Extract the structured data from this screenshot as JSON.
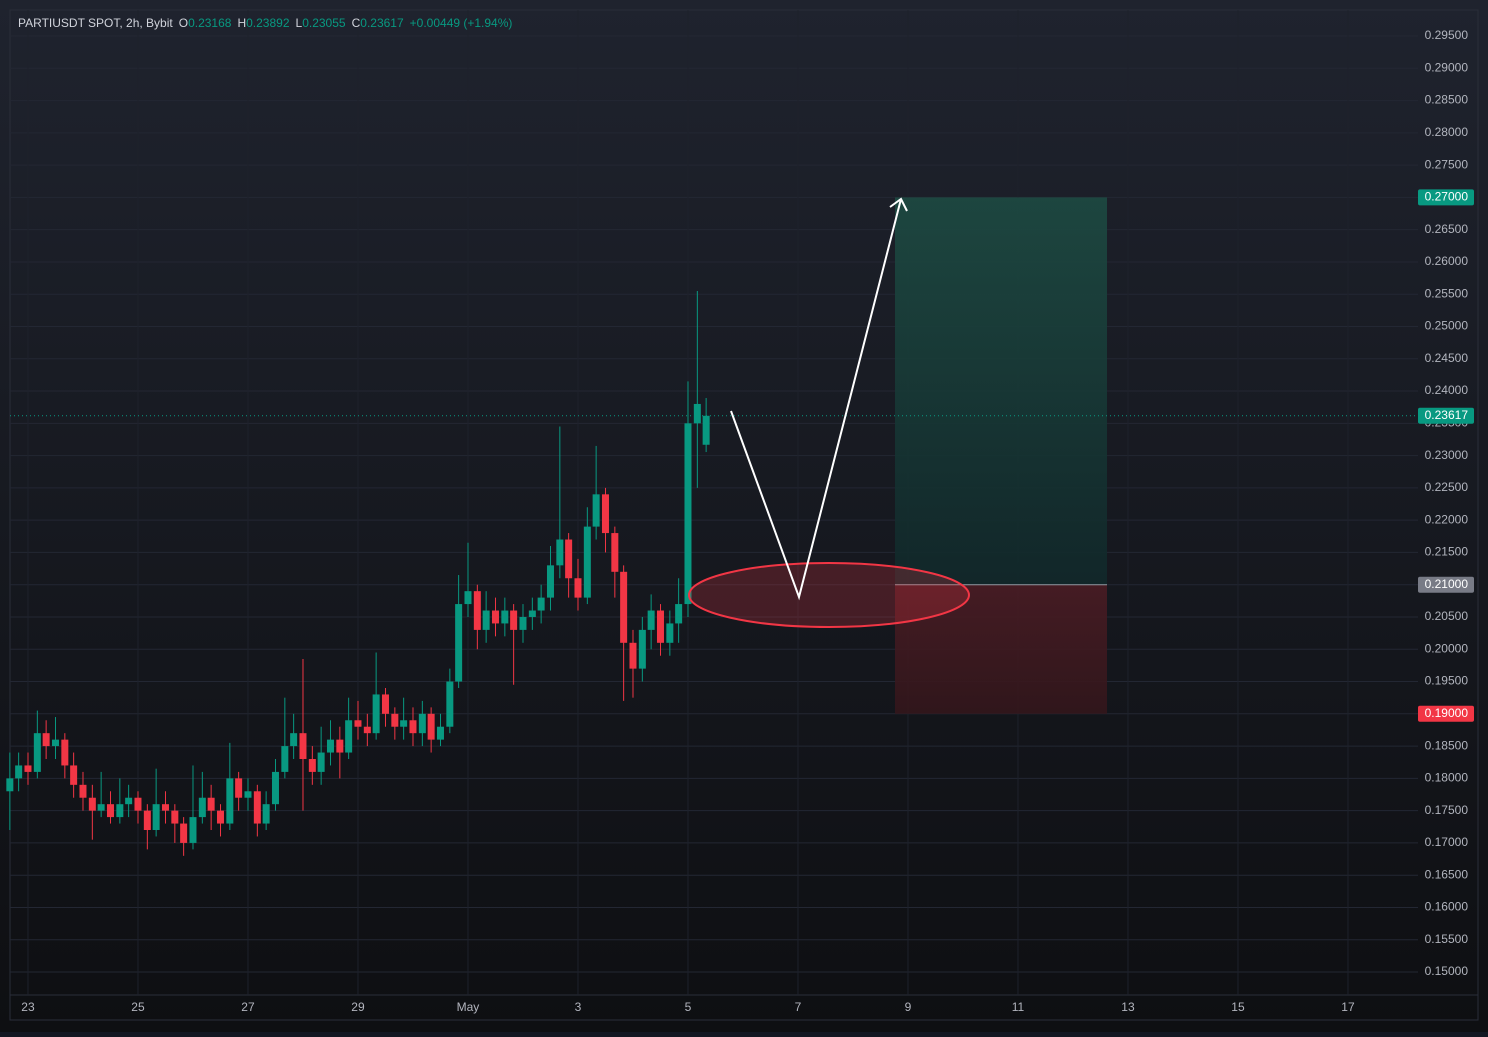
{
  "header": {
    "symbol": "PARTIUSDT SPOT, 2h, Bybit",
    "fields": [
      "O",
      "H",
      "L",
      "C"
    ],
    "change": "+0.00449 (+1.94%)"
  },
  "chart_data": {
    "type": "candlestick",
    "x": [
      -0.33,
      -0.17,
      0,
      0.17,
      0.33,
      0.5,
      0.67,
      0.83,
      1,
      1.17,
      1.33,
      1.5,
      1.67,
      1.83,
      2,
      2.17,
      2.33,
      2.5,
      2.67,
      2.83,
      3,
      3.17,
      3.33,
      3.5,
      3.67,
      3.83,
      4,
      4.17,
      4.33,
      4.5,
      4.67,
      4.83,
      5,
      5.17,
      5.33,
      5.5,
      5.67,
      5.83,
      6,
      6.17,
      6.33,
      6.5,
      6.67,
      6.83,
      7,
      7.17,
      7.33,
      7.5,
      7.67,
      7.83,
      8,
      8.17,
      8.33,
      8.5,
      8.67,
      8.83,
      9,
      9.17,
      9.33,
      9.5,
      9.67,
      9.83,
      10,
      10.17,
      10.33,
      10.5,
      10.67,
      10.83,
      11,
      11.17,
      11.33,
      11.5,
      11.67,
      11.83,
      12,
      12.17,
      12.33
    ],
    "open": [
      0.178,
      0.18,
      0.182,
      0.181,
      0.187,
      0.185,
      0.186,
      0.182,
      0.179,
      0.177,
      0.175,
      0.176,
      0.174,
      0.176,
      0.177,
      0.175,
      0.172,
      0.176,
      0.175,
      0.173,
      0.17,
      0.174,
      0.177,
      0.175,
      0.173,
      0.18,
      0.177,
      0.178,
      0.173,
      0.176,
      0.181,
      0.185,
      0.187,
      0.183,
      0.181,
      0.184,
      0.186,
      0.184,
      0.189,
      0.188,
      0.187,
      0.193,
      0.19,
      0.188,
      0.189,
      0.187,
      0.19,
      0.186,
      0.188,
      0.195,
      0.207,
      0.209,
      0.203,
      0.206,
      0.204,
      0.206,
      0.203,
      0.205,
      0.206,
      0.208,
      0.213,
      0.217,
      0.211,
      0.208,
      0.219,
      0.224,
      0.218,
      0.212,
      0.201,
      0.197,
      0.203,
      0.206,
      0.201,
      0.204,
      0.207,
      0.235,
      0.23168
    ],
    "high": [
      0.184,
      0.184,
      0.184,
      0.1905,
      0.189,
      0.1895,
      0.187,
      0.184,
      0.181,
      0.179,
      0.181,
      0.178,
      0.18,
      0.179,
      0.178,
      0.176,
      0.1815,
      0.178,
      0.176,
      0.174,
      0.182,
      0.181,
      0.179,
      0.176,
      0.1855,
      0.181,
      0.18,
      0.179,
      0.178,
      0.183,
      0.1925,
      0.19,
      0.1985,
      0.185,
      0.188,
      0.189,
      0.188,
      0.1925,
      0.192,
      0.19,
      0.1995,
      0.194,
      0.191,
      0.1925,
      0.191,
      0.192,
      0.191,
      0.19,
      0.197,
      0.2115,
      0.2165,
      0.21,
      0.209,
      0.208,
      0.208,
      0.207,
      0.207,
      0.208,
      0.21,
      0.216,
      0.2345,
      0.218,
      0.214,
      0.222,
      0.2315,
      0.225,
      0.219,
      0.213,
      0.203,
      0.205,
      0.2085,
      0.207,
      0.206,
      0.211,
      0.2415,
      0.2555,
      0.23892
    ],
    "low": [
      0.172,
      0.178,
      0.179,
      0.18,
      0.183,
      0.183,
      0.18,
      0.177,
      0.175,
      0.1705,
      0.174,
      0.173,
      0.173,
      0.174,
      0.173,
      0.169,
      0.171,
      0.173,
      0.17,
      0.168,
      0.169,
      0.173,
      0.172,
      0.171,
      0.172,
      0.175,
      0.175,
      0.171,
      0.172,
      0.175,
      0.18,
      0.183,
      0.175,
      0.179,
      0.179,
      0.182,
      0.18,
      0.183,
      0.186,
      0.185,
      0.186,
      0.188,
      0.186,
      0.186,
      0.185,
      0.185,
      0.184,
      0.185,
      0.187,
      0.194,
      0.205,
      0.2,
      0.201,
      0.202,
      0.202,
      0.1945,
      0.201,
      0.203,
      0.204,
      0.206,
      0.211,
      0.208,
      0.206,
      0.207,
      0.217,
      0.215,
      0.208,
      0.192,
      0.1925,
      0.195,
      0.2,
      0.199,
      0.199,
      0.201,
      0.205,
      0.225,
      0.23055
    ],
    "close": [
      0.18,
      0.182,
      0.181,
      0.187,
      0.185,
      0.186,
      0.182,
      0.179,
      0.177,
      0.175,
      0.176,
      0.174,
      0.176,
      0.177,
      0.175,
      0.172,
      0.176,
      0.175,
      0.173,
      0.17,
      0.174,
      0.177,
      0.175,
      0.173,
      0.18,
      0.177,
      0.178,
      0.173,
      0.176,
      0.181,
      0.185,
      0.187,
      0.183,
      0.181,
      0.184,
      0.186,
      0.184,
      0.189,
      0.188,
      0.187,
      0.193,
      0.19,
      0.188,
      0.189,
      0.187,
      0.19,
      0.186,
      0.188,
      0.195,
      0.207,
      0.209,
      0.203,
      0.206,
      0.204,
      0.206,
      0.203,
      0.205,
      0.206,
      0.208,
      0.213,
      0.217,
      0.211,
      0.208,
      0.219,
      0.224,
      0.218,
      0.212,
      0.201,
      0.197,
      0.203,
      0.206,
      0.201,
      0.204,
      0.207,
      0.235,
      0.238,
      0.23617
    ],
    "up_color": "#089981",
    "down_color": "#f23645",
    "grid": true,
    "xlim": [
      -0.327,
      25.273
    ],
    "ylim": [
      0.14644,
      0.29903
    ],
    "xticks": [
      {
        "value": 0,
        "label": "23"
      },
      {
        "value": 2,
        "label": "25"
      },
      {
        "value": 4,
        "label": "27"
      },
      {
        "value": 6,
        "label": "29"
      },
      {
        "value": 8,
        "label": "May"
      },
      {
        "value": 10,
        "label": "3"
      },
      {
        "value": 12,
        "label": "5"
      },
      {
        "value": 14,
        "label": "7"
      },
      {
        "value": 16,
        "label": "9"
      },
      {
        "value": 18,
        "label": "11"
      },
      {
        "value": 20,
        "label": "13"
      },
      {
        "value": 22,
        "label": "15"
      },
      {
        "value": 24,
        "label": "17"
      }
    ],
    "yticks": [
      {
        "value": 0.15,
        "label": "0.15000"
      },
      {
        "value": 0.155,
        "label": "0.15500"
      },
      {
        "value": 0.16,
        "label": "0.16000"
      },
      {
        "value": 0.165,
        "label": "0.16500"
      },
      {
        "value": 0.17,
        "label": "0.17000"
      },
      {
        "value": 0.175,
        "label": "0.17500"
      },
      {
        "value": 0.18,
        "label": "0.18000"
      },
      {
        "value": 0.185,
        "label": "0.18500"
      },
      {
        "value": 0.19,
        "label": "0.19000"
      },
      {
        "value": 0.195,
        "label": "0.19500"
      },
      {
        "value": 0.2,
        "label": "0.20000"
      },
      {
        "value": 0.205,
        "label": "0.20500"
      },
      {
        "value": 0.21,
        "label": "0.21000"
      },
      {
        "value": 0.215,
        "label": "0.21500"
      },
      {
        "value": 0.22,
        "label": "0.22000"
      },
      {
        "value": 0.225,
        "label": "0.22500"
      },
      {
        "value": 0.23,
        "label": "0.23000"
      },
      {
        "value": 0.235,
        "label": "0.23500"
      },
      {
        "value": 0.24,
        "label": "0.24000"
      },
      {
        "value": 0.245,
        "label": "0.24500"
      },
      {
        "value": 0.25,
        "label": "0.25000"
      },
      {
        "value": 0.255,
        "label": "0.25500"
      },
      {
        "value": 0.26,
        "label": "0.26000"
      },
      {
        "value": 0.265,
        "label": "0.26500"
      },
      {
        "value": 0.27,
        "label": "0.27000"
      },
      {
        "value": 0.275,
        "label": "0.27500"
      },
      {
        "value": 0.28,
        "label": "0.28000"
      },
      {
        "value": 0.285,
        "label": "0.28500"
      },
      {
        "value": 0.29,
        "label": "0.29000"
      },
      {
        "value": 0.295,
        "label": "0.29500"
      }
    ],
    "position": {
      "target": {
        "value": 0.27,
        "label": "0.27000"
      },
      "entry": {
        "value": 0.21,
        "label": "0.21000"
      },
      "stop": {
        "value": 0.19,
        "label": "0.19000"
      }
    }
  }
}
